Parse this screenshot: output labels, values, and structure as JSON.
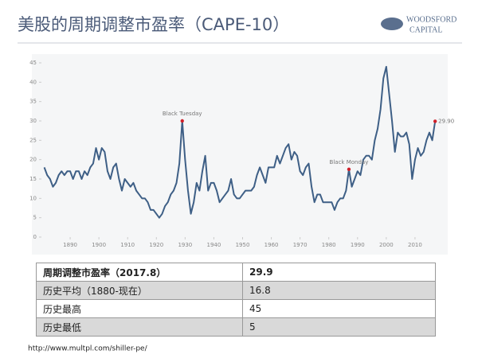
{
  "header": {
    "title": "美股的周期调整市盈率（CAPE-10）",
    "logo_top": "WOODSFORD",
    "logo_bottom": "CAPITAL"
  },
  "chart_data": {
    "type": "line",
    "color": "#3e5f86",
    "x": [
      1881,
      1882,
      1883,
      1884,
      1885,
      1886,
      1887,
      1888,
      1889,
      1890,
      1891,
      1892,
      1893,
      1894,
      1895,
      1896,
      1897,
      1898,
      1899,
      1900,
      1901,
      1902,
      1903,
      1904,
      1905,
      1906,
      1907,
      1908,
      1909,
      1910,
      1911,
      1912,
      1913,
      1914,
      1915,
      1916,
      1917,
      1918,
      1919,
      1920,
      1921,
      1922,
      1923,
      1924,
      1925,
      1926,
      1927,
      1928,
      1929,
      1930,
      1931,
      1932,
      1933,
      1934,
      1935,
      1936,
      1937,
      1938,
      1939,
      1940,
      1941,
      1942,
      1943,
      1944,
      1945,
      1946,
      1947,
      1948,
      1949,
      1950,
      1951,
      1952,
      1953,
      1954,
      1955,
      1956,
      1957,
      1958,
      1959,
      1960,
      1961,
      1962,
      1963,
      1964,
      1965,
      1966,
      1967,
      1968,
      1969,
      1970,
      1971,
      1972,
      1973,
      1974,
      1975,
      1976,
      1977,
      1978,
      1979,
      1980,
      1981,
      1982,
      1983,
      1984,
      1985,
      1986,
      1987,
      1988,
      1989,
      1990,
      1991,
      1992,
      1993,
      1994,
      1995,
      1996,
      1997,
      1998,
      1999,
      2000,
      2001,
      2002,
      2003,
      2004,
      2005,
      2006,
      2007,
      2008,
      2009,
      2010,
      2011,
      2012,
      2013,
      2014,
      2015,
      2016,
      2017
    ],
    "values": [
      18,
      16,
      15,
      13,
      14,
      16,
      17,
      16,
      17,
      17,
      15,
      17,
      17,
      15,
      17,
      16,
      18,
      19,
      23,
      20,
      23,
      22,
      17,
      15,
      18,
      19,
      15,
      12,
      15,
      14,
      13,
      14,
      12,
      11,
      10,
      10,
      9,
      7,
      7,
      6,
      5,
      6,
      8,
      9,
      11,
      12,
      14,
      19,
      30,
      20,
      12,
      6,
      9,
      14,
      12,
      17,
      21,
      12,
      14,
      14,
      12,
      9,
      10,
      11,
      12,
      15,
      11,
      10,
      10,
      11,
      12,
      12,
      12,
      13,
      16,
      18,
      16,
      14,
      18,
      18,
      18,
      21,
      19,
      21,
      23,
      24,
      20,
      22,
      21,
      17,
      16,
      18,
      19,
      13,
      9,
      11,
      11,
      9,
      9,
      9,
      9,
      7,
      9,
      10,
      10,
      12,
      17.5,
      13,
      15,
      17,
      16,
      20,
      21,
      21,
      20,
      25,
      28,
      33,
      41,
      44,
      37,
      30,
      22,
      27,
      26,
      26,
      27,
      24,
      15,
      20,
      23,
      21,
      22,
      25,
      27,
      25,
      29.9
    ],
    "xlim": [
      1880,
      2020
    ],
    "ylim": [
      0,
      45
    ],
    "xticks": [
      1890,
      1900,
      1910,
      1920,
      1930,
      1940,
      1950,
      1960,
      1970,
      1980,
      1990,
      2000,
      2010
    ],
    "yticks": [
      0,
      5,
      10,
      15,
      20,
      25,
      30,
      35,
      40,
      45
    ],
    "annotations": [
      {
        "label": "Black Tuesday",
        "x": 1929,
        "y": 30
      },
      {
        "label": "Black Monday",
        "x": 1987,
        "y": 17.5
      },
      {
        "label": "29.90",
        "x": 2017,
        "y": 29.9
      }
    ]
  },
  "table": {
    "rows": [
      [
        "周期调整市盈率（2017.8）",
        "29.9"
      ],
      [
        "历史平均（1880-现在）",
        "16.8"
      ],
      [
        "历史最高",
        "45"
      ],
      [
        "历史最低",
        "5"
      ]
    ]
  },
  "source": {
    "url": "http://www.multpl.com/shiller-pe/"
  }
}
